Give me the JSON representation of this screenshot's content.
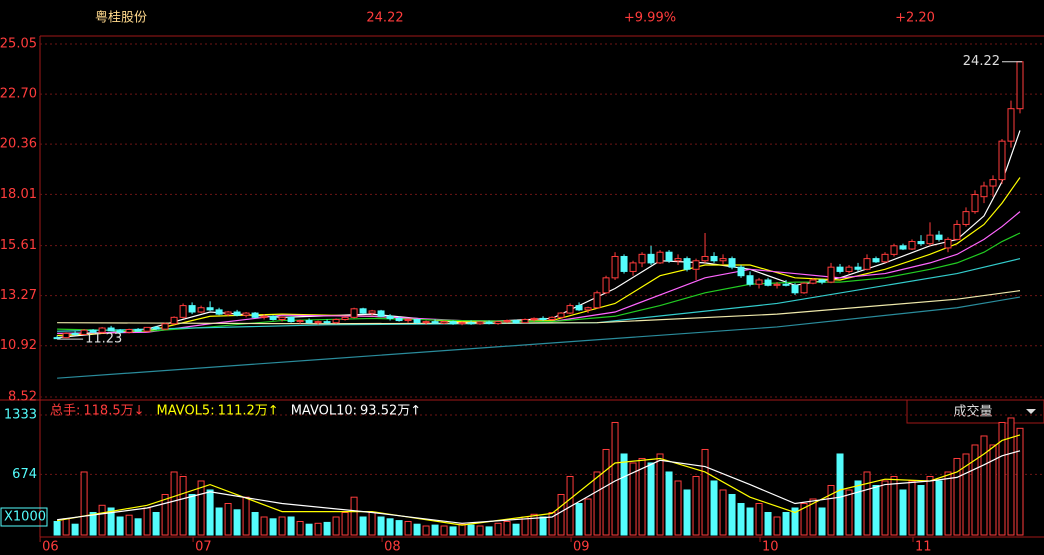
{
  "chart_data": {
    "type": "candlestick",
    "title": "粤桂股份",
    "price": 24.22,
    "change_pct": {
      "value": 9.99,
      "label": "+9.99%"
    },
    "change": {
      "value": 2.2,
      "label": "+2.20"
    },
    "up_color": "#ff3c3c",
    "down_color": "#54fcfc",
    "xlim": [
      -1.9,
      107
    ],
    "xticks": [
      {
        "value": 0,
        "label": "06"
      },
      {
        "value": 17,
        "label": "07"
      },
      {
        "value": 38,
        "label": "08"
      },
      {
        "value": 59,
        "label": "09"
      },
      {
        "value": 80,
        "label": "10"
      },
      {
        "value": 97,
        "label": "11"
      }
    ],
    "ylim": [
      8.52,
      25.05
    ],
    "yticks": [
      25.05,
      {
        "value": 22.7,
        "label": "22.70"
      },
      20.36,
      18.01,
      15.61,
      13.27,
      10.92,
      8.52
    ],
    "max_label": 24.22,
    "min_label": 11.23,
    "candles": [
      [
        11.3,
        11.4,
        11.23,
        11.28
      ],
      [
        11.3,
        11.55,
        11.28,
        11.5
      ],
      [
        11.5,
        11.6,
        11.4,
        11.45
      ],
      [
        11.45,
        11.7,
        11.42,
        11.65
      ],
      [
        11.65,
        11.7,
        11.5,
        11.55
      ],
      [
        11.55,
        11.8,
        11.5,
        11.75
      ],
      [
        11.75,
        11.85,
        11.6,
        11.62
      ],
      [
        11.62,
        11.7,
        11.5,
        11.55
      ],
      [
        11.55,
        11.72,
        11.5,
        11.68
      ],
      [
        11.68,
        11.75,
        11.58,
        11.6
      ],
      [
        11.6,
        11.8,
        11.55,
        11.78
      ],
      [
        11.78,
        11.85,
        11.65,
        11.7
      ],
      [
        11.7,
        12.0,
        11.65,
        11.95
      ],
      [
        11.95,
        12.3,
        11.9,
        12.25
      ],
      [
        12.25,
        12.9,
        12.2,
        12.8
      ],
      [
        12.8,
        12.95,
        12.4,
        12.5
      ],
      [
        12.5,
        12.8,
        12.45,
        12.7
      ],
      [
        12.7,
        13.0,
        12.55,
        12.6
      ],
      [
        12.6,
        12.7,
        12.35,
        12.4
      ],
      [
        12.4,
        12.55,
        12.3,
        12.5
      ],
      [
        12.5,
        12.6,
        12.3,
        12.35
      ],
      [
        12.35,
        12.5,
        12.25,
        12.45
      ],
      [
        12.45,
        12.5,
        12.2,
        12.25
      ],
      [
        12.25,
        12.4,
        12.15,
        12.3
      ],
      [
        12.3,
        12.35,
        12.1,
        12.15
      ],
      [
        12.15,
        12.3,
        12.05,
        12.25
      ],
      [
        12.25,
        12.3,
        12.0,
        12.05
      ],
      [
        12.05,
        12.15,
        11.95,
        12.1
      ],
      [
        12.1,
        12.2,
        11.95,
        12.0
      ],
      [
        12.0,
        12.1,
        11.9,
        12.05
      ],
      [
        12.05,
        12.15,
        11.95,
        12.0
      ],
      [
        12.0,
        12.2,
        11.95,
        12.15
      ],
      [
        12.15,
        12.3,
        12.1,
        12.25
      ],
      [
        12.25,
        12.7,
        12.2,
        12.65
      ],
      [
        12.65,
        12.7,
        12.4,
        12.45
      ],
      [
        12.45,
        12.6,
        12.35,
        12.55
      ],
      [
        12.55,
        12.6,
        12.25,
        12.3
      ],
      [
        12.3,
        12.4,
        12.1,
        12.2
      ],
      [
        12.2,
        12.3,
        12.05,
        12.1
      ],
      [
        12.1,
        12.2,
        12.0,
        12.15
      ],
      [
        12.15,
        12.2,
        11.95,
        12.0
      ],
      [
        12.0,
        12.1,
        11.9,
        12.05
      ],
      [
        12.05,
        12.15,
        11.95,
        11.98
      ],
      [
        11.98,
        12.1,
        11.92,
        12.05
      ],
      [
        12.05,
        12.1,
        11.9,
        11.95
      ],
      [
        11.95,
        12.05,
        11.88,
        12.0
      ],
      [
        12.0,
        12.1,
        11.9,
        11.95
      ],
      [
        11.95,
        12.08,
        11.9,
        12.03
      ],
      [
        12.03,
        12.1,
        11.92,
        11.96
      ],
      [
        11.96,
        12.08,
        11.9,
        12.05
      ],
      [
        12.05,
        12.15,
        11.98,
        12.1
      ],
      [
        12.1,
        12.15,
        11.95,
        12.0
      ],
      [
        12.0,
        12.2,
        11.98,
        12.15
      ],
      [
        12.15,
        12.25,
        12.05,
        12.2
      ],
      [
        12.2,
        12.3,
        12.1,
        12.15
      ],
      [
        12.15,
        12.3,
        12.1,
        12.25
      ],
      [
        12.25,
        12.5,
        12.2,
        12.45
      ],
      [
        12.45,
        12.9,
        12.4,
        12.8
      ],
      [
        12.8,
        12.95,
        12.55,
        12.6
      ],
      [
        12.6,
        12.75,
        12.45,
        12.7
      ],
      [
        12.7,
        13.5,
        12.65,
        13.4
      ],
      [
        13.4,
        14.2,
        13.35,
        14.1
      ],
      [
        14.1,
        15.3,
        14.0,
        15.1
      ],
      [
        15.1,
        15.2,
        14.3,
        14.4
      ],
      [
        14.4,
        14.9,
        14.2,
        14.8
      ],
      [
        14.8,
        15.3,
        14.6,
        15.2
      ],
      [
        15.2,
        15.6,
        14.7,
        14.8
      ],
      [
        14.8,
        15.4,
        14.75,
        15.3
      ],
      [
        15.3,
        15.4,
        14.8,
        14.9
      ],
      [
        14.9,
        15.2,
        14.7,
        15.0
      ],
      [
        15.0,
        15.1,
        14.4,
        14.5
      ],
      [
        14.5,
        15.0,
        14.0,
        14.9
      ],
      [
        14.9,
        16.2,
        14.8,
        15.1
      ],
      [
        15.1,
        15.3,
        14.8,
        14.9
      ],
      [
        14.9,
        15.2,
        14.7,
        15.0
      ],
      [
        15.0,
        15.1,
        14.5,
        14.6
      ],
      [
        14.6,
        14.7,
        14.1,
        14.2
      ],
      [
        14.2,
        14.4,
        13.7,
        13.8
      ],
      [
        13.8,
        14.1,
        13.6,
        14.0
      ],
      [
        14.0,
        14.1,
        13.7,
        13.75
      ],
      [
        13.75,
        13.9,
        13.6,
        13.8
      ],
      [
        13.8,
        14.0,
        13.7,
        13.75
      ],
      [
        13.75,
        13.85,
        13.3,
        13.4
      ],
      [
        13.4,
        13.9,
        13.35,
        13.85
      ],
      [
        13.85,
        14.1,
        13.8,
        14.0
      ],
      [
        14.0,
        14.05,
        13.8,
        13.9
      ],
      [
        13.9,
        14.8,
        13.85,
        14.6
      ],
      [
        14.6,
        14.75,
        14.3,
        14.4
      ],
      [
        14.4,
        14.7,
        14.3,
        14.6
      ],
      [
        14.6,
        14.8,
        14.4,
        14.5
      ],
      [
        14.5,
        15.2,
        14.45,
        15.0
      ],
      [
        15.0,
        15.1,
        14.8,
        14.85
      ],
      [
        14.85,
        15.3,
        14.8,
        15.2
      ],
      [
        15.2,
        15.7,
        15.1,
        15.6
      ],
      [
        15.6,
        15.7,
        15.4,
        15.45
      ],
      [
        15.45,
        15.9,
        15.4,
        15.8
      ],
      [
        15.8,
        16.1,
        15.6,
        15.7
      ],
      [
        15.7,
        16.7,
        15.6,
        16.1
      ],
      [
        16.1,
        16.3,
        15.8,
        15.9
      ],
      [
        15.5,
        16.0,
        15.3,
        15.9
      ],
      [
        15.9,
        16.8,
        15.85,
        16.6
      ],
      [
        16.6,
        17.4,
        16.5,
        17.2
      ],
      [
        17.2,
        18.2,
        17.1,
        18.0
      ],
      [
        17.9,
        18.6,
        17.6,
        18.4
      ],
      [
        18.4,
        18.9,
        17.9,
        18.7
      ],
      [
        18.7,
        20.6,
        18.5,
        20.5
      ],
      [
        20.5,
        22.4,
        20.2,
        22.02
      ],
      [
        22.02,
        24.22,
        21.8,
        24.22
      ]
    ],
    "volume": [
      150,
      180,
      120,
      700,
      250,
      330,
      300,
      200,
      220,
      180,
      300,
      250,
      450,
      700,
      650,
      450,
      600,
      500,
      300,
      350,
      280,
      420,
      250,
      200,
      180,
      200,
      200,
      150,
      120,
      130,
      140,
      200,
      250,
      420,
      200,
      250,
      200,
      180,
      160,
      150,
      120,
      100,
      110,
      100,
      90,
      120,
      110,
      100,
      90,
      130,
      150,
      120,
      200,
      230,
      200,
      250,
      450,
      650,
      350,
      400,
      700,
      950,
      1250,
      900,
      800,
      850,
      800,
      900,
      700,
      600,
      500,
      650,
      950,
      600,
      500,
      450,
      350,
      300,
      350,
      250,
      200,
      250,
      300,
      350,
      400,
      300,
      550,
      900,
      500,
      600,
      700,
      550,
      600,
      650,
      500,
      600,
      550,
      650,
      600,
      700,
      850,
      900,
      1000,
      1100,
      1000,
      1250,
      1300,
      1185
    ],
    "ma_series": [
      {
        "color": "#ffffff",
        "x": [
          0,
          10,
          17,
          25,
          35,
          45,
          55,
          62,
          67,
          72,
          77,
          82,
          87,
          92,
          97,
          100,
          103,
          105,
          107
        ],
        "values": [
          11.3,
          11.7,
          12.5,
          12.25,
          12.4,
          12.0,
          12.2,
          13.6,
          14.9,
          14.8,
          14.5,
          13.75,
          14.1,
          14.8,
          15.6,
          15.9,
          17.0,
          18.6,
          21.0
        ]
      },
      {
        "color": "#ffff00",
        "x": [
          0,
          10,
          17,
          25,
          35,
          45,
          55,
          62,
          67,
          72,
          77,
          82,
          87,
          92,
          97,
          100,
          103,
          105,
          107
        ],
        "values": [
          11.4,
          11.6,
          12.3,
          12.4,
          12.3,
          12.05,
          12.1,
          12.9,
          14.2,
          14.7,
          14.7,
          14.1,
          14.0,
          14.5,
          15.2,
          15.7,
          16.6,
          17.6,
          18.8
        ]
      },
      {
        "color": "#ff66ff",
        "x": [
          0,
          10,
          17,
          25,
          35,
          45,
          55,
          62,
          67,
          72,
          77,
          82,
          87,
          92,
          97,
          100,
          103,
          105,
          107
        ],
        "values": [
          11.5,
          11.55,
          11.95,
          12.35,
          12.3,
          12.1,
          12.05,
          12.5,
          13.3,
          14.1,
          14.5,
          14.3,
          14.1,
          14.3,
          14.8,
          15.2,
          15.9,
          16.5,
          17.2
        ]
      },
      {
        "color": "#22cc22",
        "x": [
          0,
          10,
          17,
          25,
          35,
          45,
          55,
          62,
          67,
          72,
          77,
          82,
          87,
          92,
          97,
          100,
          103,
          105,
          107
        ],
        "values": [
          11.7,
          11.6,
          11.8,
          12.1,
          12.2,
          12.1,
          12.05,
          12.3,
          12.8,
          13.4,
          13.8,
          13.9,
          13.9,
          14.1,
          14.5,
          14.8,
          15.3,
          15.8,
          16.2
        ]
      },
      {
        "color": "#33cccc",
        "x": [
          0,
          30,
          60,
          80,
          100,
          107
        ],
        "values": [
          11.6,
          11.9,
          12.0,
          12.9,
          14.3,
          15.0
        ]
      },
      {
        "color": "#eee8aa",
        "x": [
          0,
          30,
          60,
          80,
          100,
          107
        ],
        "values": [
          12.0,
          11.95,
          12.0,
          12.4,
          13.1,
          13.5
        ]
      },
      {
        "color": "#2a8c9c",
        "x": [
          0,
          30,
          60,
          80,
          100,
          107
        ],
        "values": [
          9.4,
          10.3,
          11.2,
          11.8,
          12.7,
          13.2
        ]
      }
    ],
    "volume_ylim": [
      0,
      1333
    ],
    "volume_yticks": [
      1333,
      674
    ],
    "volume_unit": "X1000",
    "volume_ma_series": [
      {
        "color": "#ffff00",
        "x": [
          0,
          10,
          17,
          25,
          35,
          45,
          55,
          62,
          67,
          72,
          77,
          82,
          87,
          92,
          97,
          100,
          103,
          105,
          107
        ],
        "values": [
          160,
          330,
          560,
          260,
          260,
          110,
          240,
          800,
          850,
          700,
          420,
          250,
          500,
          620,
          600,
          700,
          900,
          1050,
          1112
        ]
      },
      {
        "color": "#ffffff",
        "x": [
          0,
          10,
          17,
          25,
          35,
          45,
          55,
          62,
          67,
          72,
          77,
          82,
          87,
          92,
          97,
          100,
          103,
          105,
          107
        ],
        "values": [
          170,
          300,
          480,
          350,
          250,
          130,
          200,
          600,
          830,
          760,
          560,
          350,
          420,
          560,
          600,
          640,
          780,
          880,
          935.2
        ]
      }
    ],
    "volume_legend": [
      {
        "name": "总手:",
        "value": 1185,
        "label": "118.5万↓",
        "color": "#ff3c3c"
      },
      {
        "name": "MAVOL5:",
        "value": 1112,
        "label": "111.2万↑",
        "color": "#ffff00"
      },
      {
        "name": "MAVOL10:",
        "value": 935.2,
        "label": "93.52万↑",
        "color": "#ffffff"
      }
    ],
    "indicator": "成交量"
  }
}
